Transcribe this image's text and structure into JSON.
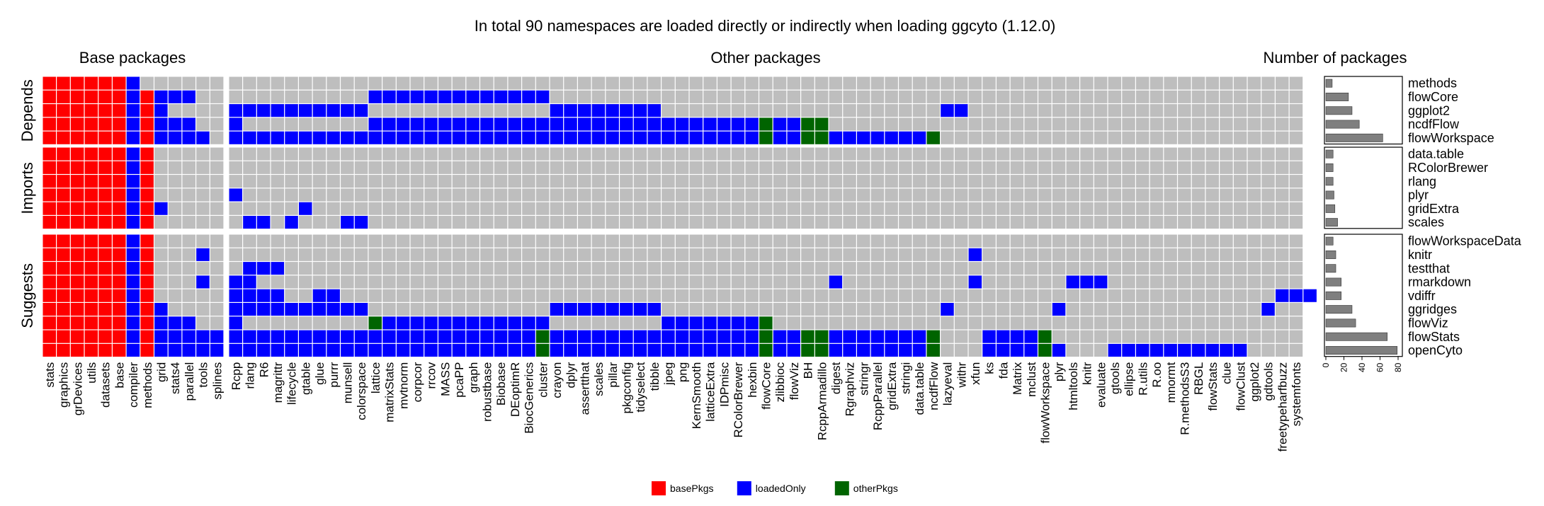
{
  "chart_data": {
    "type": "heatmap",
    "title": "In total 90 namespaces are loaded directly or indirectly when loading ggcyto (1.12.0)",
    "panels": {
      "base": "Base packages",
      "other": "Other packages",
      "count": "Number of packages"
    },
    "groups": [
      {
        "name": "Depends",
        "rows": [
          "methods",
          "flowCore",
          "ggplot2",
          "ncdfFlow",
          "flowWorkspace"
        ]
      },
      {
        "name": "Imports",
        "rows": [
          "data.table",
          "RColorBrewer",
          "rlang",
          "plyr",
          "gridExtra",
          "scales"
        ]
      },
      {
        "name": "Suggests",
        "rows": [
          "flowWorkspaceData",
          "knitr",
          "testthat",
          "rmarkdown",
          "vdiffr",
          "ggridges",
          "flowViz",
          "flowStats",
          "openCyto"
        ]
      }
    ],
    "base_columns": [
      "stats",
      "graphics",
      "grDevices",
      "utils",
      "datasets",
      "base",
      "compiler",
      "methods",
      "grid",
      "stats4",
      "parallel",
      "tools",
      "splines"
    ],
    "other_columns": [
      "Rcpp",
      "rlang",
      "R6",
      "magrittr",
      "lifecycle",
      "gtable",
      "glue",
      "purrr",
      "munsell",
      "colorspace",
      "lattice",
      "matrixStats",
      "mvtnorm",
      "corpcor",
      "rrcov",
      "MASS",
      "pcaPP",
      "graph",
      "robustbase",
      "Biobase",
      "DEoptimR",
      "BiocGenerics",
      "cluster",
      "crayon",
      "dplyr",
      "assertthat",
      "scales",
      "pillar",
      "pkgconfig",
      "tidyselect",
      "tibble",
      "jpeg",
      "png",
      "KernSmooth",
      "latticeExtra",
      "IDPmisc",
      "RColorBrewer",
      "hexbin",
      "flowCore",
      "zlibbioc",
      "flowViz",
      "BH",
      "RcppArmadillo",
      "digest",
      "Rgraphviz",
      "stringr",
      "RcppParallel",
      "gridExtra",
      "stringi",
      "data.table",
      "ncdfFlow",
      "lazyeval",
      "withr",
      "xfun",
      "ks",
      "fda",
      "Matrix",
      "mclust",
      "flowWorkspace",
      "plyr",
      "htmltools",
      "knitr",
      "evaluate",
      "gtools",
      "ellipse",
      "R.utils",
      "R.oo",
      "mnormt",
      "R.methodsS3",
      "RBGL",
      "flowStats",
      "clue",
      "flowClust",
      "ggplot2",
      "gdtools",
      "freetypeharfbuzz",
      "systemfonts"
    ],
    "cells": {
      "methods": {
        "base": [
          1,
          1,
          1,
          1,
          1,
          1,
          2,
          0,
          0,
          0,
          0,
          0,
          0
        ],
        "other": []
      },
      "flowCore": {
        "base": [
          1,
          1,
          1,
          1,
          1,
          1,
          2,
          1,
          2,
          2,
          2,
          0,
          0
        ],
        "other": [
          [
            0,
            10,
            0
          ],
          [
            10,
            22,
            2
          ]
        ]
      },
      "ggplot2": {
        "base": [
          1,
          1,
          1,
          1,
          1,
          1,
          2,
          1,
          2,
          0,
          0,
          0,
          0
        ],
        "other": [
          [
            0,
            2,
            2
          ],
          [
            2,
            9,
            2
          ],
          [
            23,
            30,
            2
          ],
          [
            51,
            52,
            2
          ]
        ]
      },
      "ncdfFlow": {
        "base": [
          1,
          1,
          1,
          1,
          1,
          1,
          2,
          1,
          2,
          2,
          2,
          0,
          0
        ],
        "other": [
          [
            0,
            0,
            2
          ],
          [
            10,
            37,
            2
          ],
          [
            38,
            38,
            3
          ],
          [
            39,
            40,
            2
          ],
          [
            41,
            42,
            3
          ]
        ]
      },
      "flowWorkspace": {
        "base": [
          1,
          1,
          1,
          1,
          1,
          1,
          2,
          1,
          2,
          2,
          2,
          2,
          0
        ],
        "other": [
          [
            0,
            37,
            2
          ],
          [
            38,
            38,
            3
          ],
          [
            39,
            40,
            2
          ],
          [
            41,
            42,
            3
          ],
          [
            43,
            49,
            2
          ],
          [
            50,
            50,
            3
          ]
        ]
      },
      "data.table": {
        "base": [
          1,
          1,
          1,
          1,
          1,
          1,
          2,
          1,
          0,
          0,
          0,
          0,
          0
        ],
        "other": []
      },
      "RColorBrewer": {
        "base": [
          1,
          1,
          1,
          1,
          1,
          1,
          2,
          1,
          0,
          0,
          0,
          0,
          0
        ],
        "other": []
      },
      "rlang": {
        "base": [
          1,
          1,
          1,
          1,
          1,
          1,
          2,
          1,
          0,
          0,
          0,
          0,
          0
        ],
        "other": []
      },
      "plyr": {
        "base": [
          1,
          1,
          1,
          1,
          1,
          1,
          2,
          1,
          0,
          0,
          0,
          0,
          0
        ],
        "other": [
          [
            0,
            0,
            2
          ]
        ]
      },
      "gridExtra": {
        "base": [
          1,
          1,
          1,
          1,
          1,
          1,
          2,
          1,
          2,
          0,
          0,
          0,
          0
        ],
        "other": [
          [
            5,
            5,
            2
          ]
        ]
      },
      "scales": {
        "base": [
          1,
          1,
          1,
          1,
          1,
          1,
          2,
          1,
          0,
          0,
          0,
          0,
          0
        ],
        "other": [
          [
            1,
            2,
            2
          ],
          [
            4,
            4,
            2
          ],
          [
            8,
            9,
            2
          ]
        ]
      },
      "flowWorkspaceData": {
        "base": [
          1,
          1,
          1,
          1,
          1,
          1,
          2,
          1,
          0,
          0,
          0,
          0,
          0
        ],
        "other": []
      },
      "knitr": {
        "base": [
          1,
          1,
          1,
          1,
          1,
          1,
          2,
          1,
          0,
          0,
          0,
          2,
          0
        ],
        "other": [
          [
            53,
            53,
            2
          ]
        ]
      },
      "testthat": {
        "base": [
          1,
          1,
          1,
          1,
          1,
          1,
          2,
          1,
          0,
          0,
          0,
          0,
          0
        ],
        "other": [
          [
            1,
            3,
            2
          ]
        ]
      },
      "rmarkdown": {
        "base": [
          1,
          1,
          1,
          1,
          1,
          1,
          2,
          1,
          0,
          0,
          0,
          2,
          0
        ],
        "other": [
          [
            0,
            1,
            2
          ],
          [
            43,
            43,
            2
          ],
          [
            53,
            53,
            2
          ],
          [
            60,
            62,
            2
          ]
        ]
      },
      "vdiffr": {
        "base": [
          1,
          1,
          1,
          1,
          1,
          1,
          2,
          1,
          0,
          0,
          0,
          0,
          0
        ],
        "other": [
          [
            0,
            3,
            2
          ],
          [
            6,
            7,
            2
          ],
          [
            75,
            77,
            2
          ]
        ]
      },
      "ggridges": {
        "base": [
          1,
          1,
          1,
          1,
          1,
          1,
          2,
          1,
          2,
          0,
          0,
          0,
          0
        ],
        "other": [
          [
            0,
            9,
            2
          ],
          [
            23,
            30,
            2
          ],
          [
            51,
            51,
            2
          ],
          [
            59,
            59,
            2
          ],
          [
            74,
            74,
            2
          ]
        ]
      },
      "flowViz": {
        "base": [
          1,
          1,
          1,
          1,
          1,
          1,
          2,
          1,
          2,
          2,
          2,
          0,
          0
        ],
        "other": [
          [
            0,
            0,
            2
          ],
          [
            10,
            10,
            3
          ],
          [
            11,
            22,
            2
          ],
          [
            31,
            37,
            2
          ],
          [
            38,
            38,
            3
          ]
        ]
      },
      "flowStats": {
        "base": [
          1,
          1,
          1,
          1,
          1,
          1,
          2,
          1,
          2,
          2,
          2,
          2,
          2
        ],
        "other": [
          [
            0,
            21,
            2
          ],
          [
            22,
            22,
            3
          ],
          [
            23,
            37,
            2
          ],
          [
            38,
            38,
            3
          ],
          [
            39,
            40,
            2
          ],
          [
            41,
            42,
            3
          ],
          [
            43,
            49,
            2
          ],
          [
            50,
            50,
            3
          ],
          [
            54,
            57,
            2
          ],
          [
            58,
            58,
            3
          ]
        ]
      },
      "openCyto": {
        "base": [
          1,
          1,
          1,
          1,
          1,
          1,
          2,
          1,
          2,
          2,
          2,
          2,
          2
        ],
        "other": [
          [
            0,
            21,
            2
          ],
          [
            22,
            22,
            3
          ],
          [
            23,
            37,
            2
          ],
          [
            38,
            38,
            3
          ],
          [
            39,
            40,
            2
          ],
          [
            41,
            42,
            3
          ],
          [
            43,
            49,
            2
          ],
          [
            50,
            50,
            3
          ],
          [
            54,
            57,
            2
          ],
          [
            58,
            58,
            3
          ],
          [
            59,
            59,
            2
          ],
          [
            63,
            72,
            2
          ]
        ]
      }
    },
    "counts": {
      "methods": 7,
      "flowCore": 25,
      "ggplot2": 29,
      "ncdfFlow": 37,
      "flowWorkspace": 63,
      "data.table": 8,
      "RColorBrewer": 8,
      "rlang": 8,
      "plyr": 9,
      "gridExtra": 10,
      "scales": 13,
      "flowWorkspaceData": 8,
      "knitr": 11,
      "testthat": 11,
      "rmarkdown": 17,
      "vdiffr": 17,
      "ggridges": 29,
      "flowViz": 33,
      "flowStats": 68,
      "openCyto": 79
    },
    "count_axis": {
      "ticks": [
        "0",
        "20",
        "40",
        "60",
        "80"
      ],
      "xlim": [
        0,
        80
      ]
    },
    "legend": [
      {
        "key": 1,
        "label": "basePkgs",
        "color": "#ff0000"
      },
      {
        "key": 2,
        "label": "loadedOnly",
        "color": "#0000ff"
      },
      {
        "key": 3,
        "label": "otherPkgs",
        "color": "#006400"
      }
    ],
    "empty_color": "#bebebe",
    "bar_color": "#7f7f7f",
    "legend_placement": "bottom"
  }
}
